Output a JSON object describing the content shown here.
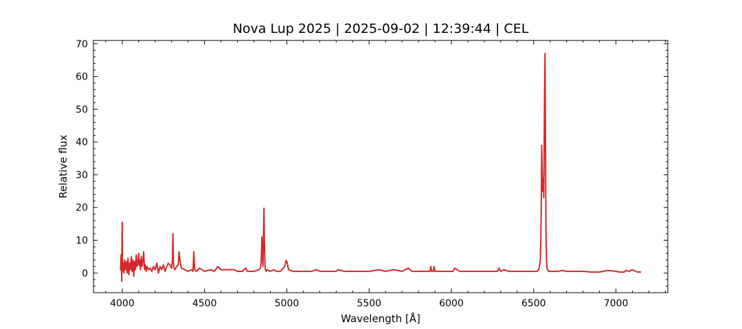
{
  "chart_data": {
    "type": "line",
    "title": "Nova Lup 2025 | 2025-09-02 | 12:39:44 | CEL",
    "xlabel": "Wavelength [Å]",
    "ylabel": "Relative flux",
    "xlim": [
      3825,
      7315
    ],
    "ylim": [
      -6,
      71
    ],
    "xticks": [
      4000,
      4500,
      5000,
      5500,
      6000,
      6500,
      7000
    ],
    "yticks": [
      0,
      10,
      20,
      30,
      40,
      50,
      60,
      70
    ],
    "grid": false,
    "legend": "none",
    "series": [
      {
        "color": "#d62728",
        "x": [
          3990,
          3993,
          3995,
          3997,
          3998,
          3999,
          4000,
          4001,
          4002,
          4004,
          4006,
          4010,
          4015,
          4020,
          4025,
          4030,
          4035,
          4040,
          4045,
          4050,
          4055,
          4060,
          4065,
          4070,
          4075,
          4080,
          4085,
          4090,
          4095,
          4100,
          4102,
          4105,
          4110,
          4115,
          4120,
          4125,
          4130,
          4135,
          4140,
          4145,
          4150,
          4160,
          4170,
          4180,
          4190,
          4200,
          4210,
          4220,
          4230,
          4240,
          4250,
          4260,
          4270,
          4280,
          4290,
          4300,
          4305,
          4308,
          4311,
          4315,
          4320,
          4330,
          4340,
          4345,
          4350,
          4355,
          4360,
          4380,
          4400,
          4420,
          4430,
          4435,
          4440,
          4450,
          4470,
          4500,
          4540,
          4560,
          4580,
          4600,
          4640,
          4680,
          4700,
          4730,
          4750,
          4760,
          4800,
          4830,
          4840,
          4845,
          4848,
          4851,
          4855,
          4858,
          4861,
          4864,
          4867,
          4870,
          4875,
          4880,
          4900,
          4920,
          4940,
          4960,
          4980,
          4990,
          4995,
          5000,
          5005,
          5010,
          5020,
          5040,
          5060,
          5100,
          5150,
          5180,
          5200,
          5250,
          5300,
          5310,
          5350,
          5400,
          5450,
          5500,
          5560,
          5600,
          5650,
          5700,
          5740,
          5760,
          5800,
          5850,
          5870,
          5875,
          5880,
          5890,
          5895,
          5900,
          5950,
          6000,
          6010,
          6020,
          6050,
          6100,
          6150,
          6200,
          6250,
          6280,
          6290,
          6300,
          6320,
          6350,
          6370,
          6400,
          6450,
          6500,
          6520,
          6530,
          6535,
          6540,
          6543,
          6546,
          6549,
          6552,
          6555,
          6558,
          6561,
          6563,
          6566,
          6569,
          6572,
          6575,
          6578,
          6581,
          6585,
          6590,
          6600,
          6620,
          6650,
          6670,
          6700,
          6750,
          6800,
          6850,
          6900,
          6920,
          6950,
          7000,
          7020,
          7050,
          7060,
          7080,
          7100,
          7130,
          7150
        ],
        "y": [
          1.0,
          5.5,
          3.0,
          -2.5,
          6.0,
          12.0,
          15.5,
          4.0,
          1.5,
          0.5,
          3.0,
          0.0,
          4.0,
          1.0,
          3.5,
          0.0,
          4.5,
          -0.5,
          3.0,
          1.0,
          5.0,
          0.5,
          4.0,
          -1.0,
          3.5,
          1.0,
          5.5,
          2.0,
          3.0,
          6.0,
          2.5,
          4.0,
          1.0,
          5.0,
          2.0,
          3.5,
          6.5,
          1.0,
          2.5,
          0.5,
          2.0,
          1.0,
          1.5,
          0.5,
          2.0,
          1.0,
          3.0,
          0.0,
          2.0,
          1.0,
          2.5,
          0.5,
          2.0,
          3.0,
          2.5,
          1.5,
          4.0,
          12.0,
          3.0,
          1.5,
          1.0,
          2.0,
          2.5,
          6.5,
          4.0,
          2.5,
          1.5,
          1.0,
          0.5,
          1.0,
          0.5,
          6.5,
          1.0,
          0.5,
          1.5,
          0.5,
          1.0,
          0.5,
          2.0,
          1.0,
          1.0,
          1.0,
          0.5,
          0.5,
          1.5,
          0.5,
          0.5,
          1.0,
          1.5,
          4.0,
          11.0,
          6.0,
          2.0,
          10.0,
          19.8,
          9.0,
          3.0,
          1.0,
          0.5,
          1.0,
          0.5,
          1.0,
          0.5,
          0.5,
          1.5,
          2.5,
          3.8,
          3.5,
          2.5,
          1.0,
          0.8,
          0.5,
          0.5,
          0.5,
          0.5,
          1.0,
          0.5,
          0.5,
          0.5,
          1.0,
          0.5,
          0.5,
          0.5,
          0.5,
          1.0,
          0.5,
          1.0,
          0.5,
          1.5,
          0.5,
          0.5,
          0.5,
          0.5,
          2.0,
          0.5,
          0.5,
          2.0,
          0.5,
          0.5,
          0.5,
          0.5,
          1.5,
          0.5,
          0.5,
          0.5,
          0.5,
          0.5,
          0.5,
          1.5,
          0.5,
          1.0,
          0.5,
          0.5,
          0.5,
          0.5,
          0.5,
          0.5,
          1.0,
          2.0,
          4.0,
          9.0,
          20.0,
          39.0,
          30.0,
          25.0,
          29.0,
          23.0,
          35.0,
          55.0,
          67.0,
          40.0,
          12.0,
          4.0,
          1.5,
          1.0,
          0.5,
          0.5,
          0.5,
          0.5,
          0.8,
          0.5,
          0.5,
          0.5,
          0.3,
          0.3,
          0.5,
          0.8,
          0.5,
          0.3,
          0.3,
          0.8,
          0.5,
          1.0,
          0.3,
          0.3
        ]
      }
    ]
  }
}
